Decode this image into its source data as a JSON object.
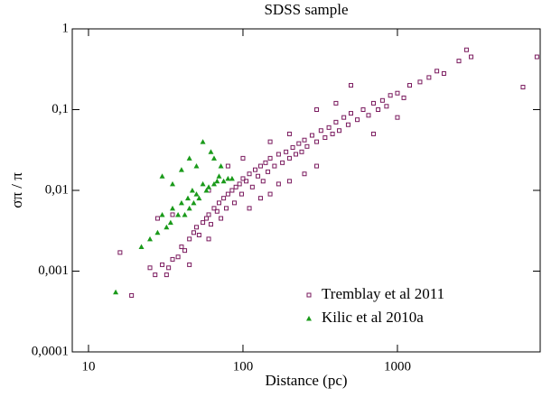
{
  "chart_data": {
    "type": "scatter",
    "title": "SDSS sample",
    "x_label": "Distance (pc)",
    "y_label": "σπ / π",
    "xlog": true,
    "ylog": true,
    "legend": "lower right",
    "xlim": [
      7.85,
      8400
    ],
    "ylim": [
      0.0001,
      1
    ],
    "xticks": [
      10,
      100,
      1000
    ],
    "yticks": [
      {
        "value": 0.0001,
        "label": "0,0001"
      },
      {
        "value": 0.001,
        "label": "0,001"
      },
      {
        "value": 0.01,
        "label": "0,01"
      },
      {
        "value": 0.1,
        "label": "0,1"
      },
      1
    ],
    "series": [
      {
        "name": "Tremblay et al 2011",
        "color": "#7a1a5e",
        "marker": "square",
        "x": [
          19,
          25,
          27,
          30,
          32,
          35,
          33,
          38,
          40,
          42,
          45,
          48,
          50,
          52,
          55,
          58,
          60,
          62,
          65,
          68,
          70,
          72,
          75,
          78,
          80,
          85,
          88,
          90,
          95,
          98,
          100,
          105,
          110,
          115,
          120,
          125,
          130,
          135,
          140,
          145,
          150,
          160,
          170,
          180,
          190,
          200,
          210,
          220,
          230,
          240,
          250,
          260,
          280,
          300,
          320,
          340,
          360,
          380,
          400,
          420,
          450,
          480,
          500,
          550,
          600,
          650,
          700,
          750,
          800,
          850,
          900,
          1000,
          1100,
          1200,
          1400,
          1600,
          1800,
          2000,
          2500,
          2800,
          3000,
          6500,
          8000,
          110,
          130,
          150,
          170,
          200,
          250,
          300,
          150,
          200,
          100,
          80,
          60,
          300,
          400,
          500,
          60,
          45,
          16,
          28,
          35,
          700,
          1000
        ],
        "values": [
          0.0005,
          0.0011,
          0.0009,
          0.0012,
          0.0009,
          0.0014,
          0.0011,
          0.0015,
          0.002,
          0.0018,
          0.0025,
          0.003,
          0.0035,
          0.0028,
          0.004,
          0.0045,
          0.005,
          0.0038,
          0.006,
          0.0055,
          0.007,
          0.0045,
          0.008,
          0.006,
          0.009,
          0.01,
          0.007,
          0.011,
          0.012,
          0.009,
          0.014,
          0.013,
          0.016,
          0.011,
          0.018,
          0.015,
          0.02,
          0.013,
          0.022,
          0.017,
          0.025,
          0.02,
          0.028,
          0.022,
          0.03,
          0.025,
          0.034,
          0.028,
          0.038,
          0.03,
          0.042,
          0.035,
          0.048,
          0.04,
          0.055,
          0.045,
          0.06,
          0.05,
          0.07,
          0.055,
          0.08,
          0.065,
          0.09,
          0.075,
          0.1,
          0.085,
          0.12,
          0.1,
          0.13,
          0.11,
          0.15,
          0.16,
          0.14,
          0.2,
          0.22,
          0.25,
          0.3,
          0.28,
          0.4,
          0.55,
          0.45,
          0.19,
          0.45,
          0.006,
          0.008,
          0.009,
          0.012,
          0.013,
          0.016,
          0.02,
          0.04,
          0.05,
          0.025,
          0.02,
          0.01,
          0.1,
          0.12,
          0.2,
          0.0025,
          0.0012,
          0.0017,
          0.0045,
          0.005,
          0.05,
          0.08
        ]
      },
      {
        "name": "Kilic et al 2010a",
        "color": "#1a9a1a",
        "marker": "triangle",
        "x": [
          15,
          22,
          25,
          28,
          30,
          32,
          34,
          35,
          38,
          40,
          42,
          44,
          45,
          47,
          48,
          50,
          52,
          55,
          58,
          60,
          62,
          65,
          68,
          70,
          72,
          75,
          80,
          85,
          50,
          40,
          45,
          35,
          55,
          30,
          65
        ],
        "values": [
          0.00055,
          0.002,
          0.0025,
          0.003,
          0.005,
          0.0035,
          0.004,
          0.006,
          0.005,
          0.007,
          0.005,
          0.008,
          0.006,
          0.01,
          0.007,
          0.009,
          0.008,
          0.012,
          0.01,
          0.011,
          0.03,
          0.012,
          0.013,
          0.015,
          0.02,
          0.013,
          0.014,
          0.014,
          0.02,
          0.018,
          0.025,
          0.012,
          0.04,
          0.015,
          0.025
        ]
      }
    ]
  }
}
